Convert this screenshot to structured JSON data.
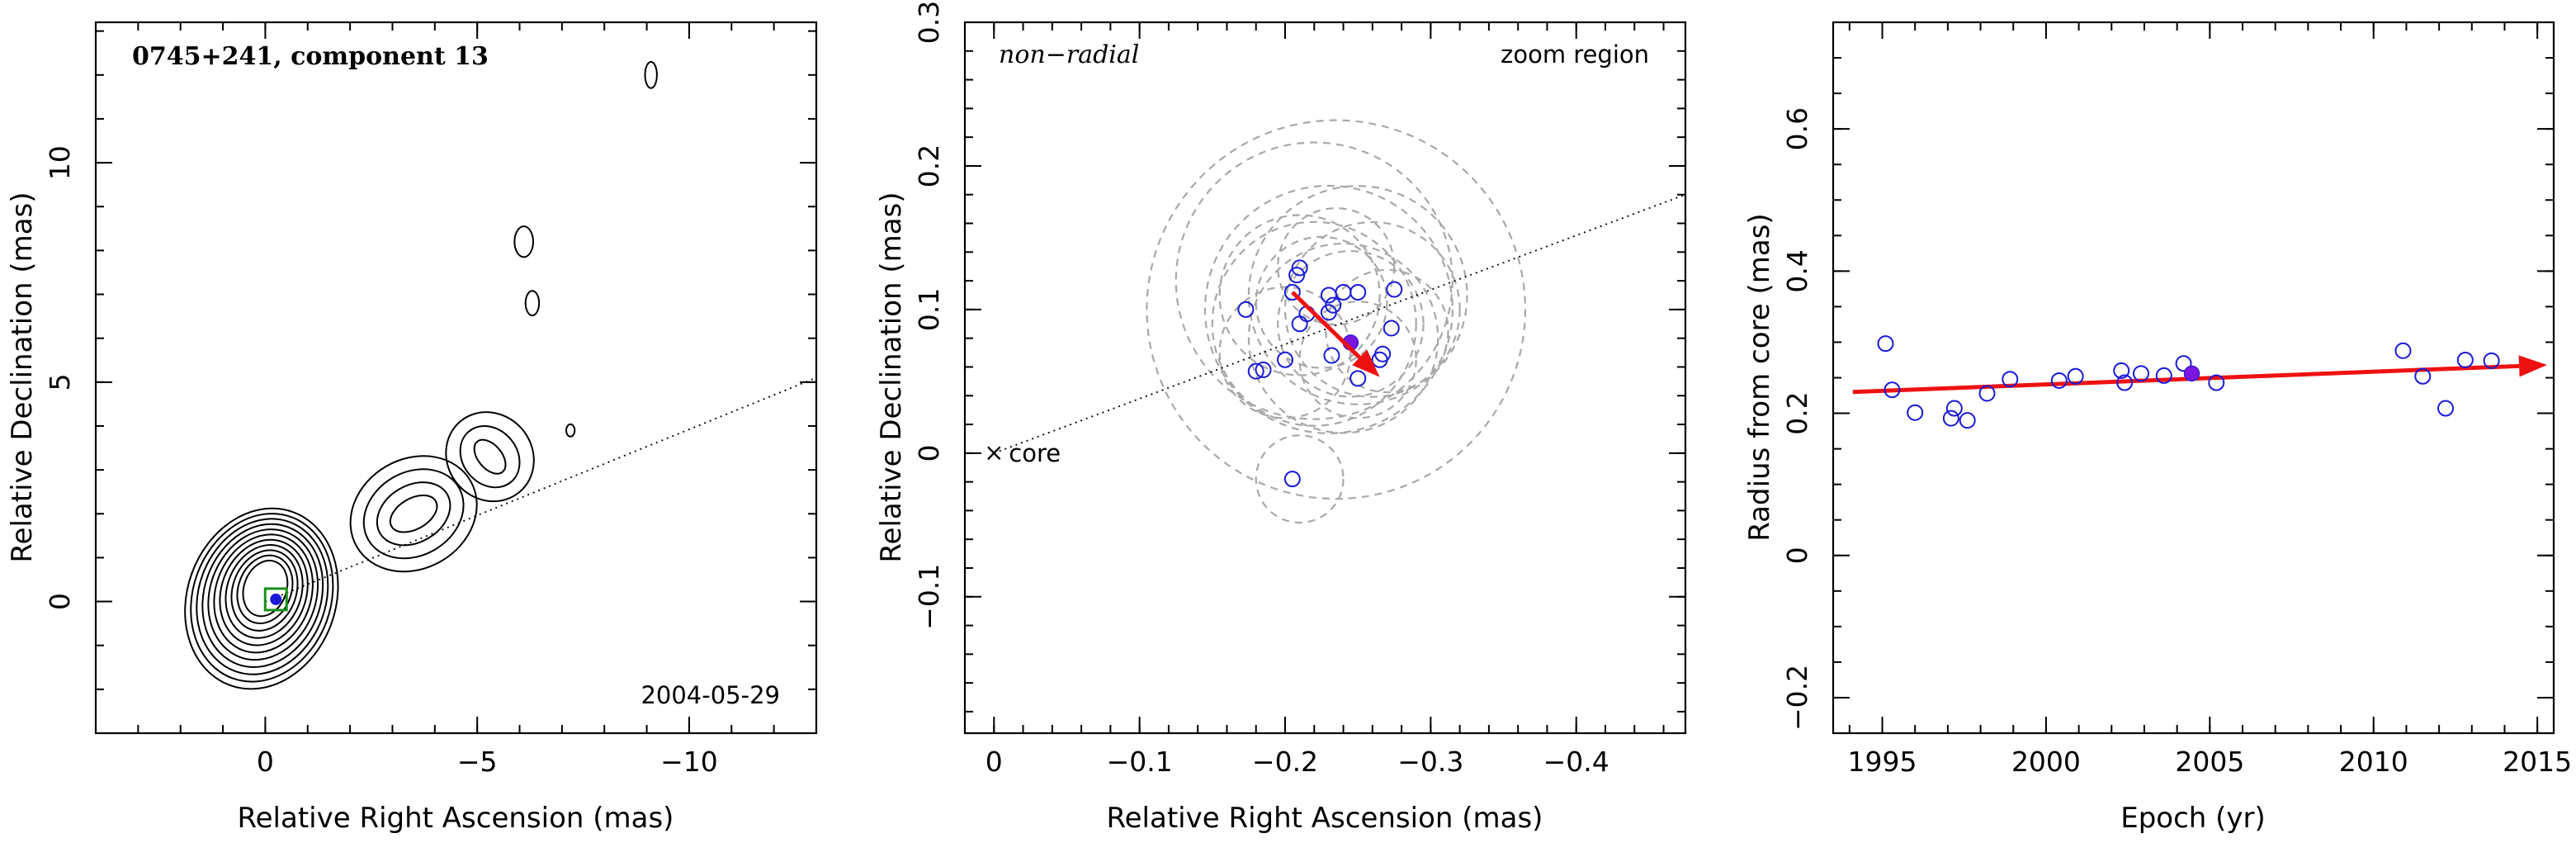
{
  "colors": {
    "points": "#1a1ad6",
    "selected_point": "#7a16e0",
    "vector": "#ee1111",
    "model_circles": "#a8a8a8",
    "core_box": "#1a8f1a"
  },
  "chart_data": [
    {
      "type": "contour",
      "title": "0745+241, component 13",
      "epoch_label": "2004-05-29",
      "xlabel": "Relative Right Ascension (mas)",
      "ylabel": "Relative Declination (mas)",
      "xlim": [
        4,
        -13
      ],
      "ylim": [
        -3,
        13.2
      ],
      "xticks": [
        0,
        -5,
        -10
      ],
      "xtick_labels": [
        "0",
        "−5",
        "−10"
      ],
      "yticks": [
        0,
        5,
        10
      ],
      "ytick_labels": [
        "0",
        "5",
        "10"
      ],
      "grid": false,
      "core_marker": {
        "x": -0.25,
        "y": 0.05
      },
      "ridge_line": {
        "from": [
          0,
          0
        ],
        "to": [
          -13,
          5.1
        ]
      },
      "contour_groups": [
        {
          "center": [
            0,
            0.3
          ],
          "levels": 11
        },
        {
          "center": [
            -3.5,
            2
          ],
          "levels": 4
        },
        {
          "center": [
            -5.3,
            3.3
          ],
          "levels": 3
        },
        {
          "center": [
            -6.1,
            8.2
          ],
          "levels": 1
        },
        {
          "center": [
            -6.3,
            6.8
          ],
          "levels": 1
        },
        {
          "center": [
            -7.2,
            3.9
          ],
          "levels": 1
        },
        {
          "center": [
            -9.1,
            12.0
          ],
          "levels": 1
        }
      ]
    },
    {
      "type": "scatter",
      "title": "non−radial",
      "region_label": "zoom region",
      "core_label": "core",
      "xlabel": "Relative Right Ascension (mas)",
      "ylabel": "Relative Declination (mas)",
      "xlim": [
        0.02,
        -0.475
      ],
      "ylim": [
        -0.195,
        0.3
      ],
      "xticks": [
        0,
        -0.1,
        -0.2,
        -0.3,
        -0.4
      ],
      "xtick_labels": [
        "0",
        "−0.1",
        "−0.2",
        "−0.3",
        "−0.4"
      ],
      "yticks": [
        -0.1,
        0,
        0.1,
        0.2,
        0.3
      ],
      "ytick_labels": [
        "−0.1",
        "0",
        "0.1",
        "0.2",
        "0.3"
      ],
      "grid": false,
      "points": [
        {
          "x": -0.173,
          "y": 0.1
        },
        {
          "x": -0.18,
          "y": 0.057
        },
        {
          "x": -0.185,
          "y": 0.058
        },
        {
          "x": -0.2,
          "y": 0.065
        },
        {
          "x": -0.205,
          "y": 0.112
        },
        {
          "x": -0.208,
          "y": 0.124
        },
        {
          "x": -0.21,
          "y": 0.129
        },
        {
          "x": -0.21,
          "y": 0.09
        },
        {
          "x": -0.215,
          "y": 0.097
        },
        {
          "x": -0.23,
          "y": 0.11
        },
        {
          "x": -0.23,
          "y": 0.098
        },
        {
          "x": -0.233,
          "y": 0.103
        },
        {
          "x": -0.24,
          "y": 0.112
        },
        {
          "x": -0.232,
          "y": 0.068
        },
        {
          "x": -0.25,
          "y": 0.112
        },
        {
          "x": -0.25,
          "y": 0.052
        },
        {
          "x": -0.265,
          "y": 0.065
        },
        {
          "x": -0.267,
          "y": 0.069
        },
        {
          "x": -0.275,
          "y": 0.114
        },
        {
          "x": -0.273,
          "y": 0.087
        },
        {
          "x": -0.205,
          "y": -0.018
        }
      ],
      "selected_point": {
        "x": -0.245,
        "y": 0.077
      },
      "model_circles": [
        {
          "x": -0.235,
          "y": 0.1,
          "r": 0.13
        },
        {
          "x": -0.22,
          "y": 0.12,
          "r": 0.095
        },
        {
          "x": -0.23,
          "y": 0.1,
          "r": 0.085
        },
        {
          "x": -0.25,
          "y": 0.11,
          "r": 0.075
        },
        {
          "x": -0.22,
          "y": 0.09,
          "r": 0.07
        },
        {
          "x": -0.24,
          "y": 0.08,
          "r": 0.065
        },
        {
          "x": -0.26,
          "y": 0.1,
          "r": 0.06
        },
        {
          "x": -0.21,
          "y": 0.11,
          "r": 0.055
        },
        {
          "x": -0.245,
          "y": 0.09,
          "r": 0.05
        },
        {
          "x": -0.225,
          "y": 0.105,
          "r": 0.045
        },
        {
          "x": -0.27,
          "y": 0.085,
          "r": 0.042
        },
        {
          "x": -0.2,
          "y": 0.07,
          "r": 0.045
        },
        {
          "x": -0.25,
          "y": 0.065,
          "r": 0.04
        },
        {
          "x": -0.235,
          "y": 0.13,
          "r": 0.04
        },
        {
          "x": -0.21,
          "y": -0.018,
          "r": 0.03
        }
      ],
      "ridge_line": {
        "from": [
          0,
          0
        ],
        "to": [
          -0.475,
          0.18
        ]
      },
      "core": {
        "x": 0,
        "y": 0
      },
      "vector": {
        "from": [
          -0.205,
          0.112
        ],
        "to": [
          -0.265,
          0.053
        ]
      }
    },
    {
      "type": "scatter",
      "xlabel": "Epoch (yr)",
      "ylabel": "Radius from core (mas)",
      "xlim": [
        1993.5,
        2015.5
      ],
      "ylim": [
        -0.25,
        0.75
      ],
      "xticks": [
        1995,
        2000,
        2005,
        2010,
        2015
      ],
      "xtick_labels": [
        "1995",
        "2000",
        "2005",
        "2010",
        "2015"
      ],
      "yticks": [
        -0.2,
        0,
        0.2,
        0.4,
        0.6
      ],
      "ytick_labels": [
        "−0.2",
        "0",
        "0.2",
        "0.4",
        "0.6"
      ],
      "grid": false,
      "points": [
        {
          "x": 1995.1,
          "y": 0.298
        },
        {
          "x": 1995.3,
          "y": 0.233
        },
        {
          "x": 1996.0,
          "y": 0.201
        },
        {
          "x": 1997.1,
          "y": 0.193
        },
        {
          "x": 1997.2,
          "y": 0.207
        },
        {
          "x": 1997.6,
          "y": 0.19
        },
        {
          "x": 1998.2,
          "y": 0.228
        },
        {
          "x": 1998.9,
          "y": 0.248
        },
        {
          "x": 2000.4,
          "y": 0.246
        },
        {
          "x": 2000.9,
          "y": 0.252
        },
        {
          "x": 2002.3,
          "y": 0.26
        },
        {
          "x": 2002.4,
          "y": 0.243
        },
        {
          "x": 2002.9,
          "y": 0.256
        },
        {
          "x": 2003.6,
          "y": 0.253
        },
        {
          "x": 2004.2,
          "y": 0.27
        },
        {
          "x": 2005.2,
          "y": 0.243
        },
        {
          "x": 2010.9,
          "y": 0.288
        },
        {
          "x": 2011.5,
          "y": 0.252
        },
        {
          "x": 2012.2,
          "y": 0.207
        },
        {
          "x": 2012.8,
          "y": 0.275
        },
        {
          "x": 2013.6,
          "y": 0.274
        }
      ],
      "selected_point": {
        "x": 2004.45,
        "y": 0.256
      },
      "vector": {
        "from": [
          1994.1,
          0.23
        ],
        "to": [
          2015.3,
          0.268
        ]
      }
    }
  ]
}
